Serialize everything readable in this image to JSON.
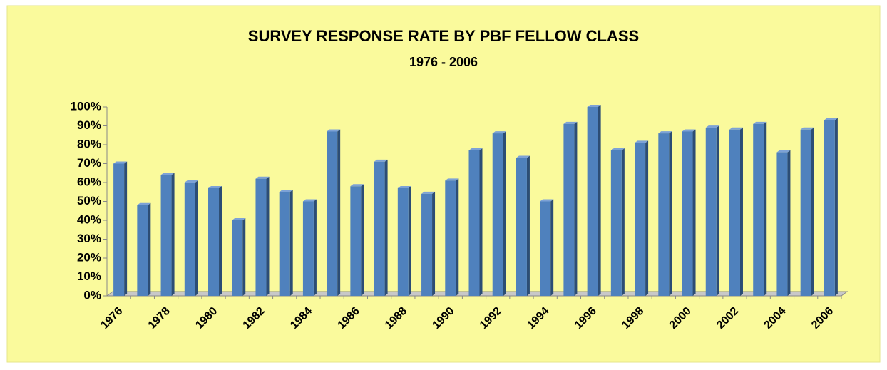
{
  "chart_data": {
    "type": "bar3d",
    "title": "SURVEY RESPONSE RATE BY PBF FELLOW CLASS",
    "subtitle": "1976 - 2006",
    "categories": [
      "1976",
      null,
      "1978",
      null,
      "1980",
      null,
      "1982",
      null,
      "1984",
      null,
      "1986",
      null,
      "1988",
      null,
      "1990",
      null,
      "1992",
      null,
      "1994",
      null,
      "1996",
      null,
      "1998",
      null,
      "2000",
      null,
      "2002",
      null,
      "2004",
      null,
      "2006"
    ],
    "values": [
      70,
      48,
      64,
      60,
      57,
      40,
      62,
      55,
      50,
      87,
      58,
      71,
      57,
      54,
      61,
      77,
      86,
      73,
      50,
      91,
      100,
      77,
      81,
      86,
      87,
      89,
      88,
      91,
      76,
      88,
      93
    ],
    "color": "#4f81bd",
    "ylim": [
      0,
      100
    ],
    "yticks": [
      {
        "value": 0,
        "label": "0%"
      },
      {
        "value": 10,
        "label": "10%"
      },
      {
        "value": 20,
        "label": "20%"
      },
      {
        "value": 30,
        "label": "30%"
      },
      {
        "value": 40,
        "label": "40%"
      },
      {
        "value": 50,
        "label": "50%"
      },
      {
        "value": 60,
        "label": "60%"
      },
      {
        "value": 70,
        "label": "70%"
      },
      {
        "value": 80,
        "label": "80%"
      },
      {
        "value": 90,
        "label": "90%"
      },
      {
        "value": 100,
        "label": "100%"
      }
    ]
  }
}
